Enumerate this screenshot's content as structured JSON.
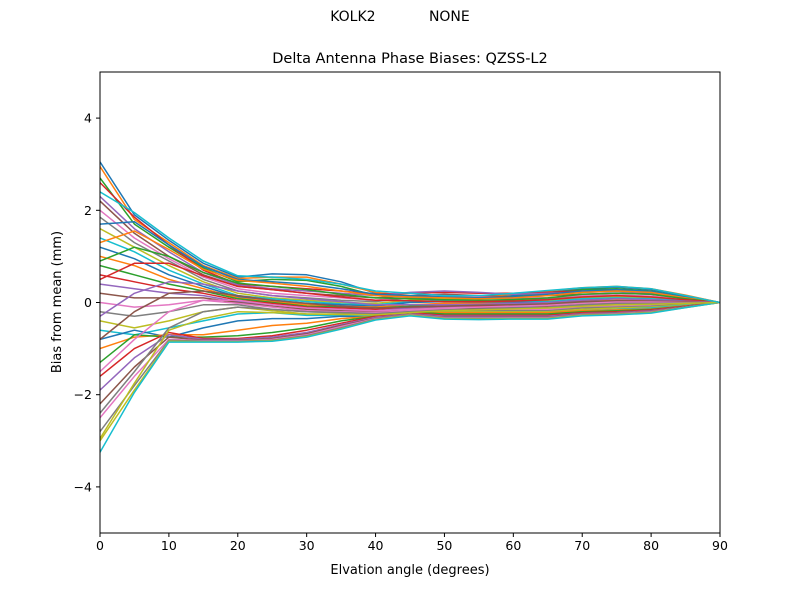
{
  "figure_title": "KOLK2            NONE",
  "chart_data": {
    "type": "line",
    "title": "Delta Antenna Phase Biases: QZSS-L2",
    "xlabel": "Elvation angle (degrees)",
    "ylabel": "Bias from mean (mm)",
    "xlim": [
      0,
      90
    ],
    "ylim": [
      -5,
      5
    ],
    "xticks": [
      "0",
      "10",
      "20",
      "30",
      "40",
      "50",
      "60",
      "70",
      "80",
      "90"
    ],
    "yticks": [
      "4",
      "2",
      "0",
      "−2",
      "−4"
    ],
    "x": [
      0,
      5,
      10,
      15,
      20,
      25,
      30,
      35,
      40,
      45,
      50,
      55,
      60,
      65,
      70,
      75,
      80,
      85,
      90
    ],
    "series": [
      {
        "values": [
          3.05,
          1.9,
          1.35,
          0.85,
          0.55,
          0.62,
          0.6,
          0.45,
          0.2,
          0.1,
          0.08,
          0.1,
          0.15,
          0.22,
          0.3,
          0.33,
          0.28,
          0.15,
          0.0
        ]
      },
      {
        "values": [
          2.95,
          1.8,
          1.3,
          0.8,
          0.52,
          0.55,
          0.55,
          0.4,
          0.22,
          0.15,
          0.1,
          0.12,
          0.18,
          0.25,
          0.32,
          0.35,
          0.3,
          0.16,
          0.0
        ]
      },
      {
        "values": [
          2.7,
          1.7,
          1.2,
          0.75,
          0.45,
          0.5,
          0.48,
          0.35,
          0.15,
          0.12,
          0.1,
          0.1,
          0.12,
          0.2,
          0.28,
          0.3,
          0.25,
          0.12,
          0.0
        ]
      },
      {
        "values": [
          2.6,
          1.85,
          1.25,
          0.7,
          0.4,
          0.35,
          0.3,
          0.25,
          0.18,
          0.2,
          0.22,
          0.2,
          0.2,
          0.22,
          0.25,
          0.26,
          0.22,
          0.1,
          0.0
        ]
      },
      {
        "values": [
          2.3,
          1.6,
          1.1,
          0.65,
          0.38,
          0.3,
          0.25,
          0.2,
          0.15,
          0.22,
          0.25,
          0.22,
          0.18,
          0.2,
          0.22,
          0.24,
          0.2,
          0.1,
          0.0
        ]
      },
      {
        "values": [
          2.2,
          1.5,
          1.0,
          0.6,
          0.35,
          0.28,
          0.2,
          0.15,
          0.1,
          0.15,
          0.18,
          0.15,
          0.12,
          0.15,
          0.18,
          0.2,
          0.18,
          0.08,
          0.0
        ]
      },
      {
        "values": [
          2.0,
          1.4,
          0.95,
          0.55,
          0.3,
          0.2,
          0.15,
          0.1,
          0.05,
          0.12,
          0.15,
          0.12,
          0.1,
          0.1,
          0.15,
          0.16,
          0.14,
          0.06,
          0.0
        ]
      },
      {
        "values": [
          1.85,
          1.3,
          0.9,
          0.5,
          0.25,
          0.15,
          0.1,
          0.05,
          0.02,
          0.1,
          0.12,
          0.1,
          0.08,
          0.08,
          0.12,
          0.14,
          0.12,
          0.05,
          0.0
        ]
      },
      {
        "values": [
          1.6,
          1.2,
          0.8,
          0.45,
          0.2,
          0.1,
          0.05,
          0.0,
          -0.02,
          0.05,
          0.08,
          0.05,
          0.05,
          0.05,
          0.1,
          0.12,
          0.1,
          0.05,
          0.0
        ]
      },
      {
        "values": [
          1.4,
          1.1,
          0.7,
          0.4,
          0.15,
          0.08,
          0.02,
          -0.03,
          -0.05,
          0.02,
          0.05,
          0.02,
          0.02,
          0.02,
          0.08,
          0.1,
          0.08,
          0.04,
          0.0
        ]
      },
      {
        "values": [
          1.2,
          0.95,
          0.6,
          0.35,
          0.12,
          0.05,
          -0.02,
          -0.05,
          -0.08,
          0.0,
          0.02,
          0.0,
          0.0,
          0.0,
          0.05,
          0.08,
          0.06,
          0.03,
          0.0
        ]
      },
      {
        "values": [
          1.0,
          0.8,
          0.5,
          0.3,
          0.1,
          0.02,
          -0.05,
          -0.08,
          -0.1,
          -0.05,
          -0.02,
          -0.02,
          -0.02,
          -0.02,
          0.02,
          0.05,
          0.04,
          0.02,
          0.0
        ]
      },
      {
        "values": [
          0.8,
          0.6,
          0.4,
          0.25,
          0.08,
          0.0,
          -0.08,
          -0.1,
          -0.12,
          -0.08,
          -0.05,
          -0.05,
          -0.05,
          -0.05,
          0.0,
          0.02,
          0.02,
          0.01,
          0.0
        ]
      },
      {
        "values": [
          0.6,
          0.45,
          0.3,
          0.2,
          0.05,
          -0.02,
          -0.1,
          -0.12,
          -0.15,
          -0.1,
          -0.08,
          -0.08,
          -0.08,
          -0.08,
          -0.02,
          0.0,
          0.0,
          0.0,
          0.0
        ]
      },
      {
        "values": [
          0.4,
          0.3,
          0.2,
          0.15,
          0.02,
          -0.05,
          -0.12,
          -0.15,
          -0.18,
          -0.12,
          -0.1,
          -0.1,
          -0.1,
          -0.1,
          -0.05,
          -0.02,
          -0.02,
          -0.01,
          0.0
        ]
      },
      {
        "values": [
          0.2,
          0.1,
          0.1,
          0.1,
          0.0,
          -0.08,
          -0.15,
          -0.18,
          -0.2,
          -0.15,
          -0.12,
          -0.12,
          -0.12,
          -0.12,
          -0.08,
          -0.05,
          -0.04,
          -0.02,
          0.0
        ]
      },
      {
        "values": [
          0.0,
          -0.1,
          -0.05,
          0.05,
          -0.02,
          -0.1,
          -0.18,
          -0.2,
          -0.22,
          -0.18,
          -0.15,
          -0.15,
          -0.15,
          -0.15,
          -0.1,
          -0.08,
          -0.06,
          -0.03,
          0.0
        ]
      },
      {
        "values": [
          -0.2,
          -0.3,
          -0.2,
          -0.05,
          -0.05,
          -0.15,
          -0.2,
          -0.22,
          -0.25,
          -0.2,
          -0.18,
          -0.18,
          -0.18,
          -0.18,
          -0.12,
          -0.1,
          -0.08,
          -0.04,
          0.0
        ]
      },
      {
        "values": [
          -0.4,
          -0.55,
          -0.4,
          -0.2,
          -0.1,
          -0.18,
          -0.25,
          -0.25,
          -0.28,
          -0.22,
          -0.2,
          -0.2,
          -0.2,
          -0.2,
          -0.15,
          -0.12,
          -0.1,
          -0.05,
          0.0
        ]
      },
      {
        "values": [
          -0.6,
          -0.7,
          -0.55,
          -0.4,
          -0.25,
          -0.22,
          -0.28,
          -0.28,
          -0.3,
          -0.25,
          -0.22,
          -0.22,
          -0.22,
          -0.22,
          -0.18,
          -0.15,
          -0.12,
          -0.06,
          0.0
        ]
      },
      {
        "values": [
          -0.8,
          -0.6,
          -0.75,
          -0.55,
          -0.4,
          -0.35,
          -0.35,
          -0.3,
          -0.32,
          -0.28,
          -0.25,
          -0.25,
          -0.25,
          -0.25,
          -0.2,
          -0.18,
          -0.15,
          -0.08,
          0.0
        ]
      },
      {
        "values": [
          -1.0,
          -0.75,
          -0.7,
          -0.7,
          -0.6,
          -0.5,
          -0.45,
          -0.35,
          -0.3,
          -0.2,
          -0.22,
          -0.22,
          -0.22,
          -0.22,
          -0.18,
          -0.16,
          -0.14,
          -0.07,
          0.0
        ]
      },
      {
        "values": [
          -1.3,
          -0.7,
          -0.75,
          -0.75,
          -0.72,
          -0.65,
          -0.55,
          -0.4,
          -0.3,
          -0.2,
          -0.25,
          -0.25,
          -0.25,
          -0.25,
          -0.2,
          -0.18,
          -0.15,
          -0.08,
          0.0
        ]
      },
      {
        "values": [
          -1.6,
          -1.0,
          -0.65,
          -0.78,
          -0.78,
          -0.72,
          -0.6,
          -0.45,
          -0.3,
          -0.22,
          -0.28,
          -0.28,
          -0.28,
          -0.28,
          -0.22,
          -0.2,
          -0.16,
          -0.08,
          0.0
        ]
      },
      {
        "values": [
          -1.9,
          -1.2,
          -0.7,
          -0.8,
          -0.8,
          -0.75,
          -0.65,
          -0.48,
          -0.32,
          -0.24,
          -0.3,
          -0.3,
          -0.3,
          -0.3,
          -0.24,
          -0.22,
          -0.18,
          -0.09,
          0.0
        ]
      },
      {
        "values": [
          -2.2,
          -1.4,
          -0.75,
          -0.82,
          -0.82,
          -0.78,
          -0.68,
          -0.5,
          -0.34,
          -0.25,
          -0.32,
          -0.32,
          -0.32,
          -0.32,
          -0.25,
          -0.23,
          -0.19,
          -0.09,
          0.0
        ]
      },
      {
        "values": [
          -2.5,
          -1.6,
          -0.8,
          -0.83,
          -0.83,
          -0.8,
          -0.7,
          -0.52,
          -0.35,
          -0.26,
          -0.33,
          -0.33,
          -0.33,
          -0.33,
          -0.26,
          -0.24,
          -0.2,
          -0.1,
          0.0
        ]
      },
      {
        "values": [
          -2.8,
          -1.8,
          -0.82,
          -0.84,
          -0.84,
          -0.82,
          -0.72,
          -0.55,
          -0.36,
          -0.27,
          -0.34,
          -0.34,
          -0.34,
          -0.34,
          -0.27,
          -0.25,
          -0.21,
          -0.1,
          0.0
        ]
      },
      {
        "values": [
          -3.0,
          -1.9,
          -0.84,
          -0.85,
          -0.85,
          -0.83,
          -0.74,
          -0.57,
          -0.37,
          -0.28,
          -0.35,
          -0.36,
          -0.35,
          -0.35,
          -0.28,
          -0.26,
          -0.22,
          -0.11,
          0.0
        ]
      },
      {
        "values": [
          -3.25,
          -1.95,
          -0.86,
          -0.86,
          -0.86,
          -0.84,
          -0.75,
          -0.58,
          -0.38,
          -0.29,
          -0.36,
          -0.37,
          -0.36,
          -0.36,
          -0.29,
          -0.27,
          -0.23,
          -0.11,
          0.0
        ]
      },
      {
        "values": [
          1.7,
          1.75,
          1.25,
          0.78,
          0.5,
          0.45,
          0.4,
          0.3,
          0.18,
          0.15,
          0.12,
          0.1,
          0.12,
          0.18,
          0.25,
          0.28,
          0.24,
          0.12,
          0.0
        ]
      },
      {
        "values": [
          1.3,
          1.55,
          1.15,
          0.72,
          0.48,
          0.42,
          0.35,
          0.25,
          0.15,
          0.12,
          0.1,
          0.08,
          0.1,
          0.15,
          0.22,
          0.25,
          0.22,
          0.1,
          0.0
        ]
      },
      {
        "values": [
          0.9,
          1.2,
          1.0,
          0.65,
          0.42,
          0.35,
          0.28,
          0.18,
          0.1,
          0.08,
          0.06,
          0.05,
          0.06,
          0.1,
          0.18,
          0.2,
          0.18,
          0.08,
          0.0
        ]
      },
      {
        "values": [
          0.5,
          0.85,
          0.85,
          0.58,
          0.35,
          0.28,
          0.2,
          0.12,
          0.05,
          0.04,
          0.02,
          0.02,
          0.03,
          0.06,
          0.12,
          0.15,
          0.12,
          0.06,
          0.0
        ]
      },
      {
        "values": [
          -0.3,
          0.2,
          0.45,
          0.4,
          0.25,
          0.15,
          0.08,
          0.02,
          -0.05,
          -0.05,
          -0.05,
          -0.04,
          -0.02,
          0.0,
          0.05,
          0.08,
          0.06,
          0.03,
          0.0
        ]
      },
      {
        "values": [
          -0.8,
          -0.2,
          0.2,
          0.25,
          0.15,
          0.05,
          -0.02,
          -0.08,
          -0.12,
          -0.1,
          -0.08,
          -0.06,
          -0.05,
          -0.03,
          0.02,
          0.04,
          0.03,
          0.02,
          0.0
        ]
      },
      {
        "values": [
          -1.5,
          -0.8,
          -0.2,
          0.05,
          0.05,
          -0.05,
          -0.12,
          -0.15,
          -0.18,
          -0.15,
          -0.12,
          -0.1,
          -0.08,
          -0.06,
          -0.02,
          0.01,
          0.01,
          0.0,
          0.0
        ]
      },
      {
        "values": [
          -2.4,
          -1.5,
          -0.55,
          -0.2,
          -0.1,
          -0.15,
          -0.2,
          -0.22,
          -0.24,
          -0.2,
          -0.16,
          -0.14,
          -0.12,
          -0.1,
          -0.05,
          -0.02,
          -0.02,
          -0.01,
          0.0
        ]
      },
      {
        "values": [
          -2.95,
          -1.75,
          -0.6,
          -0.35,
          -0.2,
          -0.22,
          -0.25,
          -0.26,
          -0.27,
          -0.22,
          -0.18,
          -0.16,
          -0.14,
          -0.12,
          -0.08,
          -0.05,
          -0.04,
          -0.02,
          0.0
        ]
      },
      {
        "values": [
          2.4,
          1.95,
          1.4,
          0.9,
          0.58,
          0.55,
          0.5,
          0.4,
          0.25,
          0.2,
          0.15,
          0.15,
          0.2,
          0.26,
          0.32,
          0.35,
          0.3,
          0.15,
          0.0
        ]
      }
    ]
  },
  "colors": [
    "#1f77b4",
    "#ff7f0e",
    "#2ca02c",
    "#d62728",
    "#9467bd",
    "#8c564b",
    "#e377c2",
    "#7f7f7f",
    "#bcbd22",
    "#17becf"
  ]
}
